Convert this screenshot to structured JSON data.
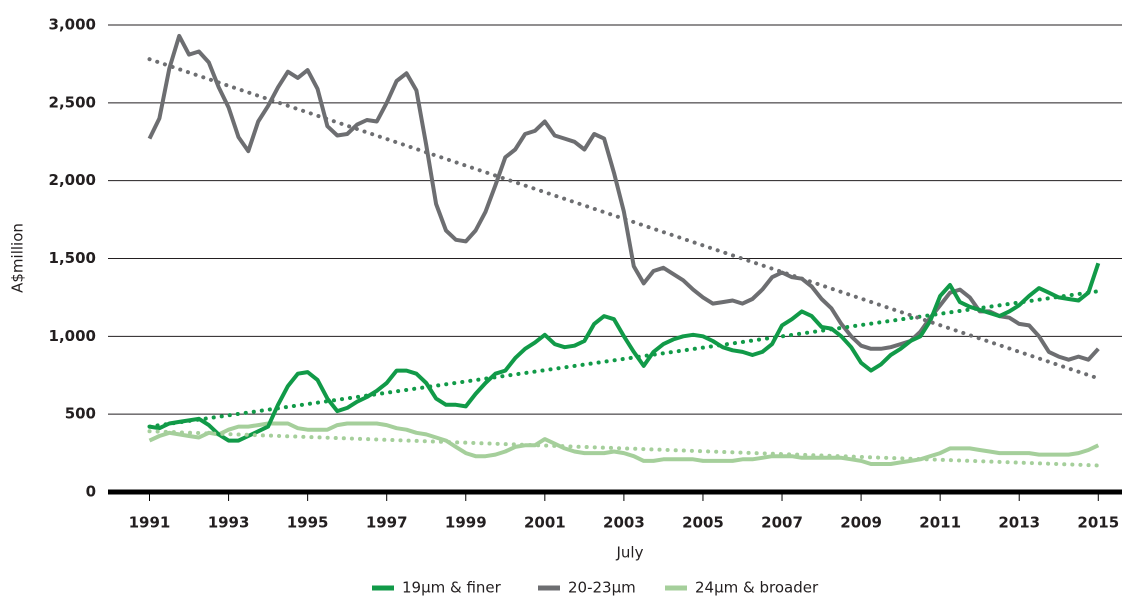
{
  "chart_data": {
    "type": "line",
    "y_label": "A$million",
    "x_label": "July",
    "xlim": [
      1989.95,
      2015.6
    ],
    "xticks": [
      1991,
      1993,
      1995,
      1997,
      1999,
      2001,
      2003,
      2005,
      2007,
      2009,
      2011,
      2013,
      2015
    ],
    "ylim": [
      0,
      3000
    ],
    "yticks": [
      0,
      500,
      {
        "value": 1000,
        "label": "1,000"
      },
      {
        "value": 1500,
        "label": "1,500"
      },
      {
        "value": 2000,
        "label": "2,000"
      },
      {
        "value": 2500,
        "label": "2,500"
      },
      {
        "value": 3000,
        "label": "3,000"
      }
    ],
    "grid": true,
    "legend": "bottom",
    "x": [
      1991,
      1991.25,
      1991.5,
      1991.75,
      1992,
      1992.25,
      1992.5,
      1992.75,
      1993,
      1993.25,
      1993.5,
      1993.75,
      1994,
      1994.25,
      1994.5,
      1994.75,
      1995,
      1995.25,
      1995.5,
      1995.75,
      1996,
      1996.25,
      1996.5,
      1996.75,
      1997,
      1997.25,
      1997.5,
      1997.75,
      1998,
      1998.25,
      1998.5,
      1998.75,
      1999,
      1999.25,
      1999.5,
      1999.75,
      2000,
      2000.25,
      2000.5,
      2000.75,
      2001,
      2001.25,
      2001.5,
      2001.75,
      2002,
      2002.25,
      2002.5,
      2002.75,
      2003,
      2003.25,
      2003.5,
      2003.75,
      2004,
      2004.25,
      2004.5,
      2004.75,
      2005,
      2005.25,
      2005.5,
      2005.75,
      2006,
      2006.25,
      2006.5,
      2006.75,
      2007,
      2007.25,
      2007.5,
      2007.75,
      2008,
      2008.25,
      2008.5,
      2008.75,
      2009,
      2009.25,
      2009.5,
      2009.75,
      2010,
      2010.25,
      2010.5,
      2010.75,
      2011,
      2011.25,
      2011.5,
      2011.75,
      2012,
      2012.25,
      2012.5,
      2012.75,
      2013,
      2013.25,
      2013.5,
      2013.75,
      2014,
      2014.25,
      2014.5,
      2014.75,
      2015
    ],
    "series": [
      {
        "name": "19µm & finer",
        "color": "#119a48",
        "values": [
          420,
          410,
          440,
          450,
          460,
          470,
          430,
          370,
          330,
          330,
          360,
          390,
          420,
          560,
          680,
          760,
          770,
          720,
          600,
          520,
          540,
          580,
          610,
          650,
          700,
          780,
          780,
          760,
          700,
          600,
          560,
          560,
          550,
          630,
          700,
          760,
          780,
          860,
          920,
          960,
          1010,
          950,
          930,
          940,
          970,
          1080,
          1130,
          1110,
          1000,
          900,
          810,
          900,
          950,
          980,
          1000,
          1010,
          1000,
          970,
          930,
          910,
          900,
          880,
          900,
          950,
          1070,
          1110,
          1160,
          1130,
          1060,
          1050,
          1000,
          930,
          830,
          780,
          820,
          880,
          920,
          970,
          1000,
          1100,
          1260,
          1330,
          1220,
          1190,
          1170,
          1150,
          1130,
          1160,
          1200,
          1260,
          1310,
          1280,
          1250,
          1240,
          1230,
          1280,
          1470
        ]
      },
      {
        "name": "20-23µm",
        "color": "#6d6e71",
        "values": [
          2270,
          2400,
          2720,
          2930,
          2810,
          2830,
          2760,
          2600,
          2470,
          2280,
          2190,
          2380,
          2480,
          2600,
          2700,
          2660,
          2710,
          2590,
          2350,
          2290,
          2300,
          2360,
          2390,
          2380,
          2500,
          2640,
          2690,
          2580,
          2230,
          1850,
          1680,
          1620,
          1610,
          1680,
          1800,
          1970,
          2150,
          2200,
          2300,
          2320,
          2380,
          2290,
          2270,
          2250,
          2200,
          2300,
          2270,
          2050,
          1800,
          1450,
          1340,
          1420,
          1440,
          1400,
          1360,
          1300,
          1250,
          1210,
          1220,
          1230,
          1210,
          1240,
          1300,
          1380,
          1410,
          1380,
          1370,
          1320,
          1240,
          1180,
          1080,
          1000,
          940,
          920,
          920,
          930,
          950,
          970,
          1030,
          1120,
          1200,
          1280,
          1300,
          1250,
          1160,
          1160,
          1130,
          1120,
          1080,
          1070,
          1000,
          900,
          870,
          850,
          870,
          850,
          920
        ]
      },
      {
        "name": "24µm & broader",
        "color": "#a5cf9b",
        "values": [
          330,
          360,
          380,
          370,
          360,
          350,
          380,
          370,
          400,
          420,
          420,
          430,
          440,
          440,
          440,
          410,
          400,
          400,
          400,
          430,
          440,
          440,
          440,
          440,
          430,
          410,
          400,
          380,
          370,
          350,
          330,
          290,
          250,
          230,
          230,
          240,
          260,
          290,
          300,
          300,
          340,
          310,
          280,
          260,
          250,
          250,
          250,
          260,
          250,
          230,
          200,
          200,
          210,
          210,
          210,
          210,
          200,
          200,
          200,
          200,
          210,
          210,
          220,
          230,
          230,
          230,
          220,
          220,
          220,
          220,
          220,
          210,
          200,
          180,
          180,
          180,
          190,
          200,
          210,
          230,
          250,
          280,
          280,
          280,
          270,
          260,
          250,
          250,
          250,
          250,
          240,
          240,
          240,
          240,
          250,
          270,
          300
        ]
      }
    ],
    "trendlines": [
      {
        "color": "#119a48",
        "x": [
          1991,
          2015
        ],
        "values": [
          420,
          1290
        ]
      },
      {
        "color": "#6d6e71",
        "x": [
          1991,
          2015
        ],
        "values": [
          2780,
          730
        ]
      },
      {
        "color": "#a5cf9b",
        "x": [
          1991,
          2015
        ],
        "values": [
          390,
          170
        ]
      }
    ]
  }
}
